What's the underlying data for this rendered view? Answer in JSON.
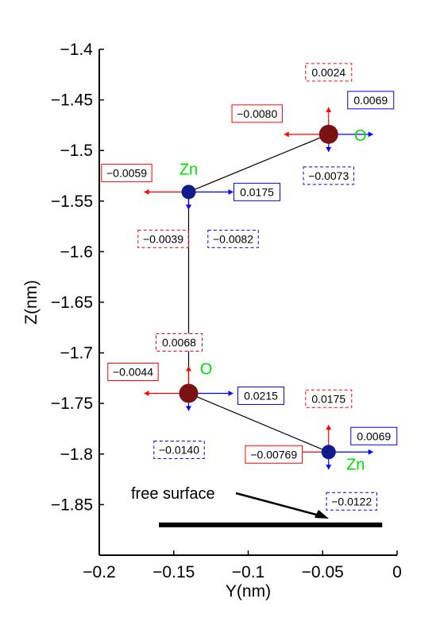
{
  "chart_data": {
    "type": "scatter",
    "title": "",
    "xlabel": "Y(nm)",
    "ylabel": "Z(nm)",
    "xlim": [
      -0.2,
      0
    ],
    "ylim": [
      -1.9,
      -1.4
    ],
    "xticks": [
      "−0.2",
      "−0.15",
      "−0.1",
      "−0.05",
      "0"
    ],
    "yticks": [
      "−1.4",
      "−1.45",
      "−1.5",
      "−1.55",
      "−1.6",
      "−1.65",
      "−1.7",
      "−1.75",
      "−1.8",
      "−1.85"
    ],
    "grid": false,
    "colors": {
      "o_atom": "#7a1212",
      "zn_atom": "#101a8c",
      "red": "#ff0000",
      "blue": "#0000ff",
      "label_green": "#00e000",
      "bond": "#000000"
    },
    "atoms": [
      {
        "id": "a1",
        "element": "O",
        "label": "O",
        "y": -0.046,
        "z": -1.484
      },
      {
        "id": "a2",
        "element": "Zn",
        "label": "Zn",
        "y": -0.14,
        "z": -1.541
      },
      {
        "id": "a3",
        "element": "O",
        "label": "O",
        "y": -0.14,
        "z": -1.74
      },
      {
        "id": "a4",
        "element": "Zn",
        "label": "Zn",
        "y": -0.046,
        "z": -1.798
      }
    ],
    "bonds": [
      [
        "a1",
        "a2"
      ],
      [
        "a2",
        "a3"
      ],
      [
        "a3",
        "a4"
      ]
    ],
    "arrows": [
      {
        "atom": "a1",
        "dir": "up",
        "color": "red",
        "value": "0.0024",
        "box": "dashed"
      },
      {
        "atom": "a1",
        "dir": "left",
        "color": "red",
        "value": "−0.0080",
        "box": "solid"
      },
      {
        "atom": "a1",
        "dir": "right",
        "color": "blue",
        "value": "0.0069",
        "box": "solid"
      },
      {
        "atom": "a1",
        "dir": "down",
        "color": "blue",
        "value": "−0.0073",
        "box": "dashed"
      },
      {
        "atom": "a2",
        "dir": "left",
        "color": "red",
        "value": "−0.0059",
        "box": "solid"
      },
      {
        "atom": "a2",
        "dir": "right",
        "color": "blue",
        "value": "0.0175",
        "box": "solid"
      },
      {
        "atom": "a2",
        "dir": "down",
        "color": "red",
        "value": "−0.0039",
        "box": "dashed"
      },
      {
        "atom": "a2",
        "dir": "down",
        "color": "blue",
        "value": "−0.0082",
        "box": "dashed"
      },
      {
        "atom": "a3",
        "dir": "up",
        "color": "red",
        "value": "0.0068",
        "box": "dashed"
      },
      {
        "atom": "a3",
        "dir": "left",
        "color": "red",
        "value": "−0.0044",
        "box": "solid"
      },
      {
        "atom": "a3",
        "dir": "right",
        "color": "blue",
        "value": "0.0215",
        "box": "solid"
      },
      {
        "atom": "a3",
        "dir": "down",
        "color": "blue",
        "value": "−0.0140",
        "box": "dashed"
      },
      {
        "atom": "a4",
        "dir": "up",
        "color": "red",
        "value": "0.0175",
        "box": "dashed"
      },
      {
        "atom": "a4",
        "dir": "left",
        "color": "red",
        "value": "−0.00769",
        "box": "solid"
      },
      {
        "atom": "a4",
        "dir": "right",
        "color": "blue",
        "value": "0.0069",
        "box": "solid"
      },
      {
        "atom": "a4",
        "dir": "down",
        "color": "blue",
        "value": "−0.0122",
        "box": "dashed"
      }
    ],
    "surface": {
      "label": "free surface",
      "y_start": -0.16,
      "y_end": -0.01,
      "z": -1.87
    }
  }
}
